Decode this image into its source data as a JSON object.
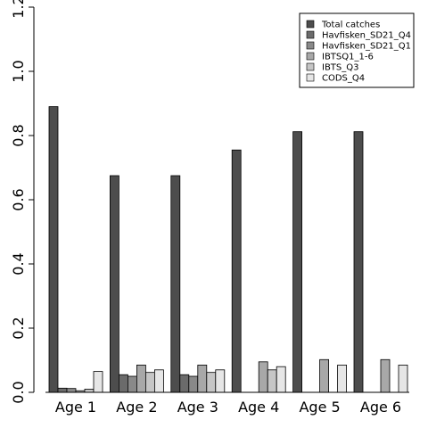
{
  "chart_data": {
    "type": "bar",
    "title": "",
    "xlabel": "",
    "ylabel": "",
    "ylim": [
      0,
      1.2
    ],
    "yticks": [
      "0.0",
      "0.2",
      "0.4",
      "0.6",
      "0.8",
      "1.0",
      "1.2"
    ],
    "grid": false,
    "legend_position": "top-right",
    "categories": [
      "Age 1",
      "Age 2",
      "Age 3",
      "Age 4",
      "Age 5",
      "Age 6"
    ],
    "series": [
      {
        "name": "Total catches",
        "color": "#4d4d4d",
        "values": [
          0.89,
          0.675,
          0.675,
          0.755,
          0.812,
          0.812
        ]
      },
      {
        "name": "Havfisken_SD21_Q4",
        "color": "#6b6b6b",
        "values": [
          0.013,
          0.055,
          0.055,
          0,
          0,
          0
        ]
      },
      {
        "name": "Havfisken_SD21_Q1",
        "color": "#898989",
        "values": [
          0.012,
          0.05,
          0.05,
          0,
          0,
          0
        ]
      },
      {
        "name": "IBTSQ1_1-6",
        "color": "#a8a8a8",
        "values": [
          0.005,
          0.085,
          0.085,
          0.095,
          0.102,
          0.102
        ]
      },
      {
        "name": "IBTS_Q3",
        "color": "#c6c6c6",
        "values": [
          0.01,
          0.062,
          0.062,
          0.07,
          0,
          0
        ]
      },
      {
        "name": "CODS_Q4",
        "color": "#e6e6e6",
        "values": [
          0.065,
          0.07,
          0.07,
          0.08,
          0.085,
          0.085
        ]
      }
    ]
  }
}
